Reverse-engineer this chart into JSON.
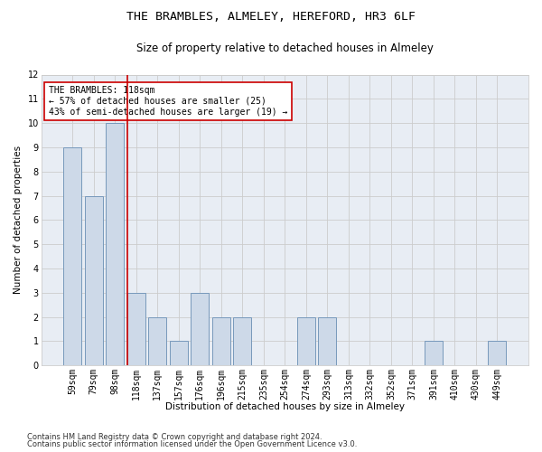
{
  "title1": "THE BRAMBLES, ALMELEY, HEREFORD, HR3 6LF",
  "title2": "Size of property relative to detached houses in Almeley",
  "xlabel": "Distribution of detached houses by size in Almeley",
  "ylabel": "Number of detached properties",
  "categories": [
    "59sqm",
    "79sqm",
    "98sqm",
    "118sqm",
    "137sqm",
    "157sqm",
    "176sqm",
    "196sqm",
    "215sqm",
    "235sqm",
    "254sqm",
    "274sqm",
    "293sqm",
    "313sqm",
    "332sqm",
    "352sqm",
    "371sqm",
    "391sqm",
    "410sqm",
    "430sqm",
    "449sqm"
  ],
  "values": [
    9,
    7,
    10,
    3,
    2,
    1,
    3,
    2,
    2,
    0,
    0,
    2,
    2,
    0,
    0,
    0,
    0,
    1,
    0,
    0,
    1
  ],
  "bar_color": "#cdd9e8",
  "bar_edge_color": "#7799bb",
  "property_index": 3,
  "property_line_color": "#cc0000",
  "annotation_text": "THE BRAMBLES: 118sqm\n← 57% of detached houses are smaller (25)\n43% of semi-detached houses are larger (19) →",
  "annotation_box_color": "#ffffff",
  "annotation_box_edge": "#cc0000",
  "ylim": [
    0,
    12
  ],
  "yticks": [
    0,
    1,
    2,
    3,
    4,
    5,
    6,
    7,
    8,
    9,
    10,
    11,
    12
  ],
  "footer1": "Contains HM Land Registry data © Crown copyright and database right 2024.",
  "footer2": "Contains public sector information licensed under the Open Government Licence v3.0.",
  "bg_color": "#ffffff",
  "plot_bg_color": "#e8edf4",
  "grid_color": "#cccccc",
  "title1_fontsize": 9.5,
  "title2_fontsize": 8.5,
  "axis_label_fontsize": 7.5,
  "tick_fontsize": 7,
  "annotation_fontsize": 7,
  "footer_fontsize": 6
}
